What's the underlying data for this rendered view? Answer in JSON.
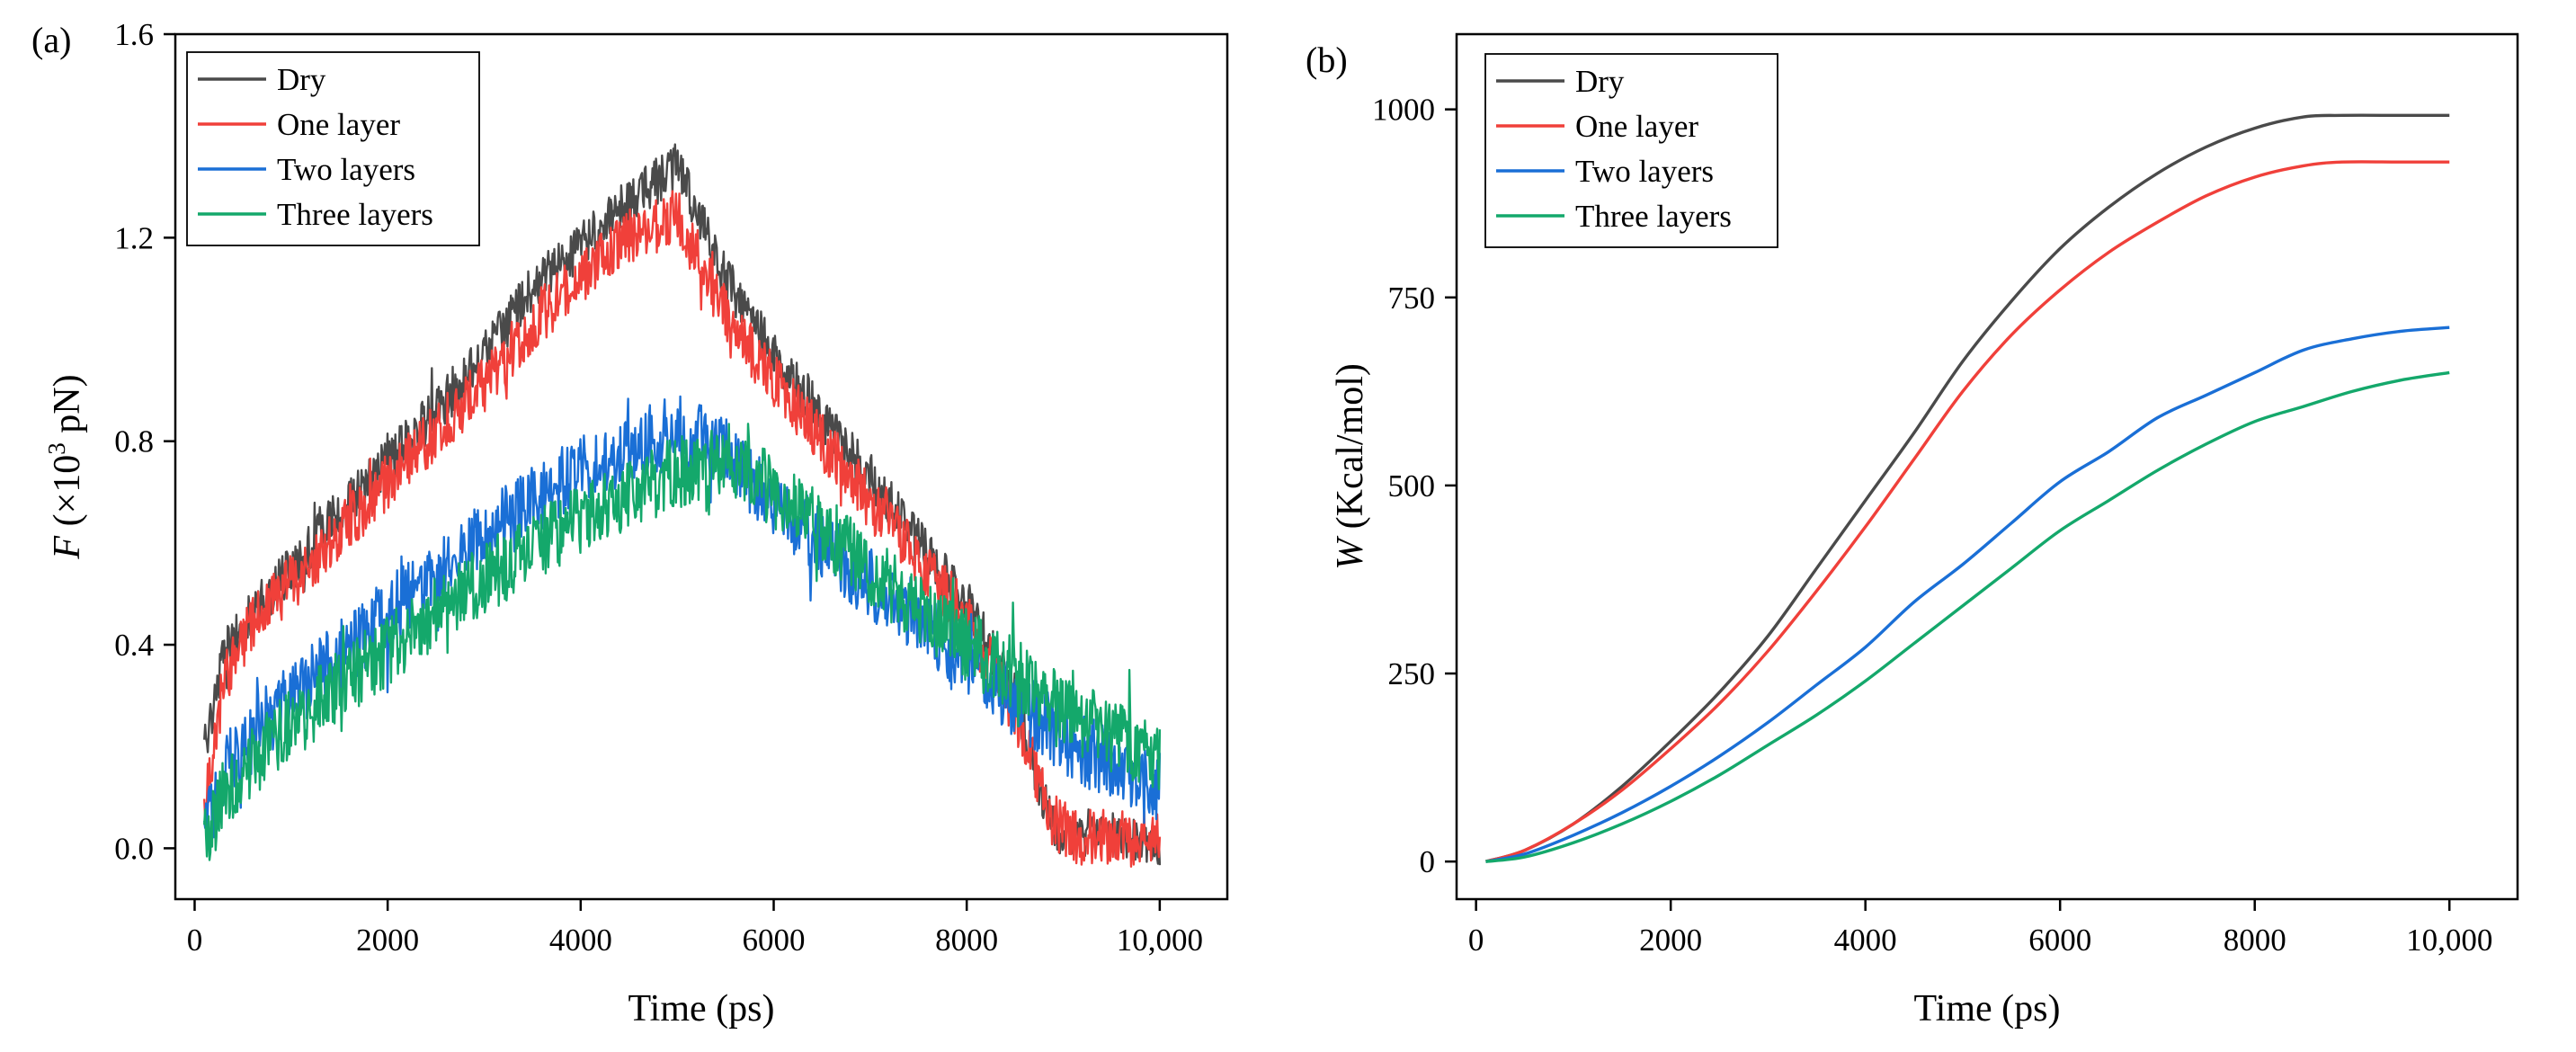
{
  "figure": {
    "title": ""
  },
  "chart_data": [
    {
      "type": "line",
      "panel_label": "(a)",
      "title": "",
      "xlabel": "Time (ps)",
      "ylabel_prefix": "F",
      "ylabel_scale_left": "(×10",
      "ylabel_exponent": "3",
      "ylabel_unit": " pN)",
      "xlim": [
        -200,
        10700
      ],
      "ylim": [
        -0.1,
        1.6
      ],
      "x_ticks": [
        0,
        2000,
        4000,
        6000,
        8000,
        10000
      ],
      "x_tick_labels": [
        "0",
        "2000",
        "4000",
        "6000",
        "8000",
        "10,000"
      ],
      "y_ticks": [
        0.0,
        0.4,
        0.8,
        1.2,
        1.6
      ],
      "y_tick_labels": [
        "0.0",
        "0.4",
        "0.8",
        "1.2",
        "1.6"
      ],
      "noisy": true,
      "legend_position": "top-left",
      "series": [
        {
          "name": "Dry",
          "color": "#4a4a4a",
          "x": [
            100,
            300,
            600,
            1000,
            1500,
            2000,
            2500,
            3000,
            3500,
            4000,
            4500,
            5000,
            5500,
            6000,
            6500,
            7000,
            7500,
            8000,
            8500,
            8900,
            9200,
            9600,
            10000
          ],
          "y": [
            0.2,
            0.38,
            0.46,
            0.55,
            0.66,
            0.76,
            0.86,
            0.97,
            1.1,
            1.18,
            1.27,
            1.34,
            1.12,
            0.97,
            0.85,
            0.73,
            0.6,
            0.48,
            0.3,
            0.03,
            0.03,
            0.02,
            0.0
          ],
          "noise": 0.03
        },
        {
          "name": "One layer",
          "color": "#f0403a",
          "x": [
            100,
            300,
            600,
            1000,
            1500,
            2000,
            2500,
            3000,
            3500,
            4000,
            4500,
            5000,
            5500,
            6000,
            6500,
            7000,
            7500,
            8000,
            8500,
            8900,
            9200,
            9600,
            10000
          ],
          "y": [
            0.08,
            0.33,
            0.44,
            0.52,
            0.62,
            0.72,
            0.82,
            0.91,
            1.03,
            1.12,
            1.2,
            1.24,
            1.05,
            0.92,
            0.8,
            0.68,
            0.57,
            0.45,
            0.27,
            0.05,
            0.02,
            0.02,
            0.02
          ],
          "noise": 0.035
        },
        {
          "name": "Two layers",
          "color": "#1a6fd6",
          "x": [
            100,
            300,
            600,
            1000,
            1500,
            2000,
            2500,
            3000,
            3500,
            4000,
            4500,
            5000,
            5500,
            6000,
            6500,
            7000,
            7500,
            8000,
            8500,
            9000,
            9500,
            10000
          ],
          "y": [
            0.03,
            0.15,
            0.22,
            0.3,
            0.38,
            0.46,
            0.54,
            0.61,
            0.68,
            0.74,
            0.79,
            0.82,
            0.78,
            0.68,
            0.6,
            0.52,
            0.45,
            0.37,
            0.29,
            0.22,
            0.16,
            0.12
          ],
          "noise": 0.045
        },
        {
          "name": "Three layers",
          "color": "#14a86b",
          "x": [
            100,
            300,
            600,
            1000,
            1500,
            2000,
            2500,
            3000,
            3500,
            4000,
            4500,
            5000,
            5500,
            6000,
            6500,
            7000,
            7500,
            8000,
            8500,
            9000,
            9500,
            10000
          ],
          "y": [
            0.02,
            0.1,
            0.17,
            0.24,
            0.32,
            0.39,
            0.46,
            0.53,
            0.59,
            0.65,
            0.7,
            0.74,
            0.77,
            0.7,
            0.63,
            0.55,
            0.47,
            0.4,
            0.34,
            0.27,
            0.22,
            0.18
          ],
          "noise": 0.045
        }
      ]
    },
    {
      "type": "line",
      "panel_label": "(b)",
      "title": "",
      "xlabel": "Time (ps)",
      "ylabel_prefix": "W",
      "ylabel_unit": " (Kcal/mol)",
      "xlim": [
        -200,
        10700
      ],
      "ylim": [
        -50,
        1100
      ],
      "x_ticks": [
        0,
        2000,
        4000,
        6000,
        8000,
        10000
      ],
      "x_tick_labels": [
        "0",
        "2000",
        "4000",
        "6000",
        "8000",
        "10,000"
      ],
      "y_ticks": [
        0,
        250,
        500,
        750,
        1000
      ],
      "y_tick_labels": [
        "0",
        "250",
        "500",
        "750",
        "1000"
      ],
      "noisy": false,
      "legend_position": "top-left",
      "series": [
        {
          "name": "Dry",
          "color": "#4a4a4a",
          "x": [
            100,
            500,
            1000,
            1500,
            2000,
            2500,
            3000,
            3500,
            4000,
            4500,
            5000,
            5500,
            6000,
            6500,
            7000,
            7500,
            8000,
            8500,
            8900,
            9500,
            10000
          ],
          "y": [
            0,
            15,
            50,
            100,
            160,
            225,
            300,
            390,
            480,
            570,
            665,
            745,
            815,
            870,
            915,
            950,
            975,
            990,
            992,
            992,
            992
          ],
          "noise": 0
        },
        {
          "name": "One layer",
          "color": "#f0403a",
          "x": [
            100,
            500,
            1000,
            1500,
            2000,
            2500,
            3000,
            3500,
            4000,
            4500,
            5000,
            5500,
            6000,
            6500,
            7000,
            7500,
            8000,
            8500,
            8900,
            9500,
            10000
          ],
          "y": [
            0,
            15,
            50,
            95,
            150,
            210,
            280,
            360,
            445,
            535,
            625,
            700,
            760,
            810,
            850,
            885,
            910,
            925,
            930,
            930,
            930
          ],
          "noise": 0
        },
        {
          "name": "Two layers",
          "color": "#1a6fd6",
          "x": [
            100,
            500,
            1000,
            1500,
            2000,
            2500,
            3000,
            3500,
            4000,
            4500,
            5000,
            5500,
            6000,
            6500,
            7000,
            7500,
            8000,
            8500,
            9000,
            9500,
            10000
          ],
          "y": [
            0,
            10,
            35,
            65,
            100,
            140,
            185,
            235,
            285,
            345,
            395,
            450,
            505,
            545,
            590,
            620,
            650,
            680,
            695,
            705,
            710
          ],
          "noise": 0
        },
        {
          "name": "Three layers",
          "color": "#14a86b",
          "x": [
            100,
            500,
            1000,
            1500,
            2000,
            2500,
            3000,
            3500,
            4000,
            4500,
            5000,
            5500,
            6000,
            6500,
            7000,
            7500,
            8000,
            8500,
            9000,
            9500,
            10000
          ],
          "y": [
            0,
            6,
            25,
            50,
            80,
            115,
            155,
            195,
            240,
            290,
            340,
            390,
            440,
            480,
            520,
            555,
            585,
            605,
            625,
            640,
            650
          ],
          "noise": 0
        }
      ]
    }
  ]
}
